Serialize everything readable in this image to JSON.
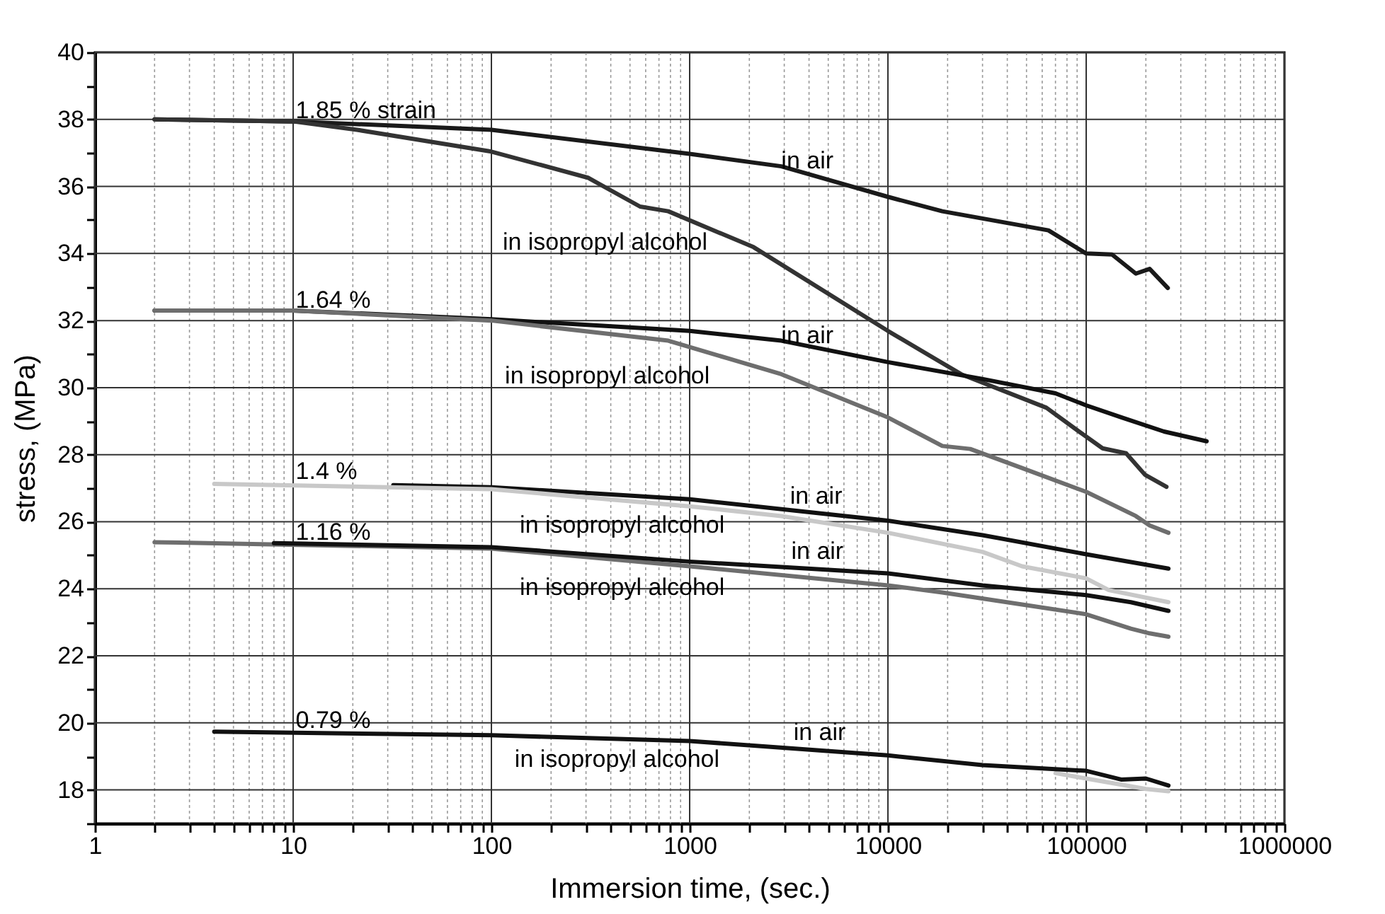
{
  "chart_data": {
    "type": "line",
    "xlabel": "Immersion time,  (sec.)",
    "ylabel": "stress, (MPa)",
    "log": "x",
    "grid": true,
    "xlim": [
      1,
      1000000
    ],
    "ylim": [
      17,
      40
    ],
    "xticks": [
      1,
      {
        "value": 2,
        "label": null
      },
      {
        "value": 3,
        "label": null
      },
      {
        "value": 4,
        "label": null
      },
      {
        "value": 5,
        "label": null
      },
      {
        "value": 6,
        "label": null
      },
      {
        "value": 7,
        "label": null
      },
      {
        "value": 8,
        "label": null
      },
      {
        "value": 9,
        "label": null
      },
      10,
      {
        "value": 20,
        "label": null
      },
      {
        "value": 30,
        "label": null
      },
      {
        "value": 40,
        "label": null
      },
      {
        "value": 50,
        "label": null
      },
      {
        "value": 60,
        "label": null
      },
      {
        "value": 70,
        "label": null
      },
      {
        "value": 80,
        "label": null
      },
      {
        "value": 90,
        "label": null
      },
      100,
      {
        "value": 200,
        "label": null
      },
      {
        "value": 300,
        "label": null
      },
      {
        "value": 400,
        "label": null
      },
      {
        "value": 500,
        "label": null
      },
      {
        "value": 600,
        "label": null
      },
      {
        "value": 700,
        "label": null
      },
      {
        "value": 800,
        "label": null
      },
      {
        "value": 900,
        "label": null
      },
      1000,
      {
        "value": 2000,
        "label": null
      },
      {
        "value": 3000,
        "label": null
      },
      {
        "value": 4000,
        "label": null
      },
      {
        "value": 5000,
        "label": null
      },
      {
        "value": 6000,
        "label": null
      },
      {
        "value": 7000,
        "label": null
      },
      {
        "value": 8000,
        "label": null
      },
      {
        "value": 9000,
        "label": null
      },
      10000,
      {
        "value": 20000,
        "label": null
      },
      {
        "value": 30000,
        "label": null
      },
      {
        "value": 40000,
        "label": null
      },
      {
        "value": 50000,
        "label": null
      },
      {
        "value": 60000,
        "label": null
      },
      {
        "value": 70000,
        "label": null
      },
      {
        "value": 80000,
        "label": null
      },
      {
        "value": 90000,
        "label": null
      },
      100000,
      {
        "value": 200000,
        "label": null
      },
      {
        "value": 300000,
        "label": null
      },
      {
        "value": 400000,
        "label": null
      },
      {
        "value": 500000,
        "label": null
      },
      {
        "value": 600000,
        "label": null
      },
      {
        "value": 700000,
        "label": null
      },
      {
        "value": 800000,
        "label": null
      },
      {
        "value": 900000,
        "label": null
      },
      1000000
    ],
    "yticks": [
      {
        "value": 17,
        "label": null
      },
      18,
      {
        "value": 19,
        "label": null
      },
      20,
      {
        "value": 21,
        "label": null
      },
      22,
      {
        "value": 23,
        "label": null
      },
      24,
      {
        "value": 25,
        "label": null
      },
      26,
      {
        "value": 27,
        "label": null
      },
      28,
      {
        "value": 29,
        "label": null
      },
      30,
      {
        "value": 31,
        "label": null
      },
      32,
      {
        "value": 33,
        "label": null
      },
      34,
      {
        "value": 35,
        "label": null
      },
      36,
      {
        "value": 37,
        "label": null
      },
      38,
      {
        "value": 39,
        "label": null
      },
      40
    ],
    "series": [
      {
        "color": "#1a1a1a",
        "x": [
          2,
          10,
          100,
          1000,
          2900,
          10000,
          18800,
          64500,
          100000,
          135000,
          178000,
          209000,
          258000
        ],
        "values": [
          38,
          37.94,
          37.69,
          36.97,
          36.6,
          35.69,
          35.26,
          34.69,
          34,
          33.97,
          33.4,
          33.54,
          32.97
        ]
      },
      {
        "color": "#333333",
        "x": [
          2,
          10,
          21,
          100,
          307,
          562,
          780,
          2100,
          10000,
          23400,
          63000,
          92000,
          121000,
          159000,
          198000,
          254000
        ],
        "values": [
          38,
          37.94,
          37.69,
          37.04,
          36.26,
          35.4,
          35.26,
          34.19,
          31.69,
          30.4,
          29.4,
          28.69,
          28.19,
          28.04,
          27.4,
          27.04
        ]
      },
      {
        "color": "#111111",
        "x": [
          2,
          10,
          100,
          1000,
          2900,
          10000,
          29900,
          70000,
          100000,
          151000,
          247000,
          405000
        ],
        "values": [
          32.3,
          32.3,
          32.04,
          31.69,
          31.4,
          30.76,
          30.26,
          29.83,
          29.47,
          29.11,
          28.69,
          28.4
        ]
      },
      {
        "color": "#6e6e6e",
        "x": [
          2,
          10,
          100,
          780,
          2900,
          10000,
          18800,
          26000,
          47500,
          100000,
          178000,
          209000,
          260000
        ],
        "values": [
          32.3,
          32.3,
          32,
          31.4,
          30.4,
          29.11,
          28.26,
          28.17,
          27.6,
          26.89,
          26.17,
          25.89,
          25.67
        ]
      },
      {
        "color": "#111111",
        "x": [
          32,
          100,
          1000,
          10000,
          30000,
          100000,
          260000
        ],
        "values": [
          27.09,
          27.03,
          26.67,
          26.03,
          25.6,
          25.03,
          24.6
        ]
      },
      {
        "color": "#c8c8c8",
        "x": [
          4,
          100,
          1000,
          2900,
          10000,
          30000,
          47500,
          100000,
          130000,
          260000
        ],
        "values": [
          27.13,
          26.97,
          26.46,
          26.17,
          25.67,
          25.1,
          24.67,
          24.31,
          23.96,
          23.6
        ]
      },
      {
        "color": "#6e6e6e",
        "x": [
          2,
          100,
          1000,
          10000,
          18800,
          47500,
          100000,
          168000,
          209000,
          260000
        ],
        "values": [
          25.39,
          25.2,
          24.67,
          24.1,
          23.89,
          23.53,
          23.24,
          22.81,
          22.67,
          22.57
        ]
      },
      {
        "color": "#111111",
        "x": [
          8,
          100,
          1000,
          10000,
          30000,
          100000,
          168000,
          260000
        ],
        "values": [
          25.36,
          25.24,
          24.81,
          24.46,
          24.1,
          23.81,
          23.6,
          23.34
        ]
      },
      {
        "color": "#c8c8c8",
        "x": [
          70000,
          100000,
          200000,
          260000
        ],
        "values": [
          18.5,
          18.34,
          18.03,
          17.96
        ]
      },
      {
        "color": "#111111",
        "x": [
          4,
          100,
          1000,
          10000,
          30000,
          100000,
          150000,
          200000,
          260000
        ],
        "values": [
          19.74,
          19.63,
          19.46,
          19.03,
          18.74,
          18.57,
          18.31,
          18.34,
          18.13
        ]
      }
    ],
    "annotations": [
      "1.85 % strain",
      "in air",
      "in isopropyl alcohol",
      "1.64 %",
      "in air",
      "in isopropyl alcohol",
      "1.4 %",
      "in air",
      "in isopropyl alcohol",
      "1.16 %",
      "in air",
      "in isopropyl alcohol",
      "0.79 %",
      "in air",
      "in isopropyl alcohol"
    ]
  }
}
